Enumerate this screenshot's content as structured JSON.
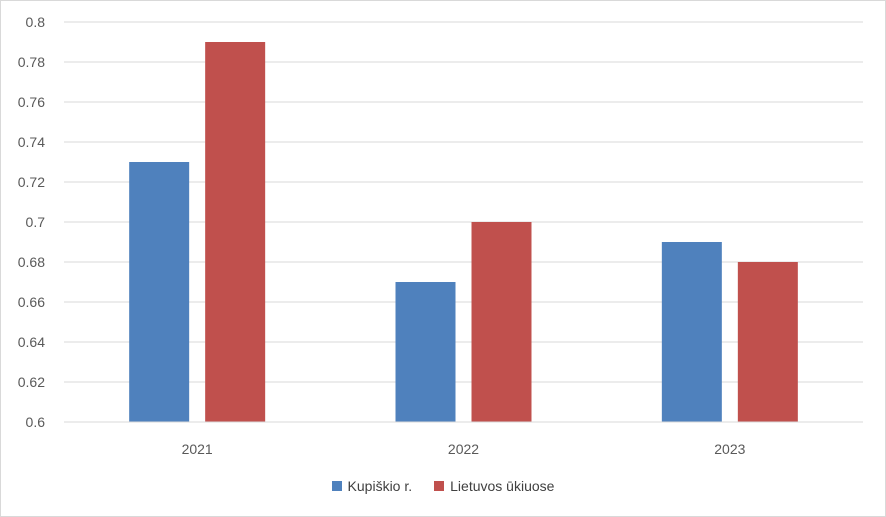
{
  "chart_data": {
    "type": "bar",
    "categories": [
      "2021",
      "2022",
      "2023"
    ],
    "series": [
      {
        "name": "Kupiškio r.",
        "values": [
          0.73,
          0.67,
          0.69
        ],
        "color": "#4f81bd"
      },
      {
        "name": "Lietuvos ūkiuose",
        "values": [
          0.79,
          0.7,
          0.68
        ],
        "color": "#c0504d"
      }
    ],
    "y_ticks": [
      "0.6",
      "0.62",
      "0.64",
      "0.66",
      "0.68",
      "0.7",
      "0.72",
      "0.74",
      "0.76",
      "0.78",
      "0.8"
    ],
    "ylim": [
      0.6,
      0.8
    ],
    "grid": true,
    "legend_position": "bottom"
  }
}
